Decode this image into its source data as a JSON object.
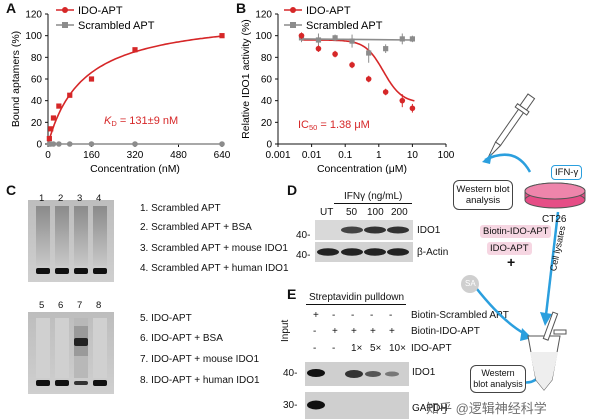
{
  "panels": {
    "A": {
      "label": "A",
      "kd_text": "K",
      "kd_sub": "D",
      "kd_value": " = 131±9 nM"
    },
    "B": {
      "label": "B",
      "ic50_text": "IC",
      "ic50_sub": "50",
      "ic50_value": " = 1.38 μM"
    },
    "C": {
      "label": "C",
      "top_lanes": [
        "1",
        "2",
        "3",
        "4"
      ],
      "bottom_lanes": [
        "5",
        "6",
        "7",
        "8"
      ],
      "legend_top": [
        "1. Scrambled APT",
        "2. Scrambled APT + BSA",
        "3. Scrambled APT + mouse IDO1",
        "4. Scrambled APT + human IDO1"
      ],
      "legend_bottom": [
        "5. IDO-APT",
        "6. IDO-APT + BSA",
        "7. IDO-APT + mouse IDO1",
        "8. IDO-APT + human IDO1"
      ]
    },
    "D": {
      "label": "D",
      "header": "IFNγ (ng/mL)",
      "lanes": [
        "UT",
        "50",
        "100",
        "200"
      ],
      "rows": [
        "IDO1",
        "β-Actin"
      ],
      "mw": [
        "40-",
        "40-"
      ]
    },
    "E": {
      "label": "E",
      "header": "Streptavidin pulldown",
      "input_label": "Input",
      "rows": [
        {
          "name": "Biotin-Scrambled APT",
          "marks": [
            "+",
            "-",
            "-",
            "-",
            "-"
          ]
        },
        {
          "name": "Biotin-IDO-APT",
          "marks": [
            "-",
            "+",
            "+",
            "+",
            "+"
          ]
        },
        {
          "name": "IDO-APT",
          "marks": [
            "-",
            "-",
            "1×",
            "5×",
            "10×"
          ]
        }
      ],
      "blots": [
        "IDO1",
        "GAPDH"
      ],
      "mw": [
        "40-",
        "30-"
      ]
    },
    "schematic": {
      "ifn": "IFN-γ",
      "western_top": "Western blot analysis",
      "cell_line": "CT26",
      "biotin_ido": "Biotin-IDO-APT",
      "ido_apt": "IDO-APT",
      "plus": "+",
      "sa": "SA",
      "cell_lysates": "Cell lysates",
      "western_bottom": "Western blot analysis",
      "watermark": "知乎 @逻辑神经科学"
    }
  },
  "chart_data": [
    {
      "type": "scatter",
      "panel": "A",
      "xlabel": "Concentration (nM)",
      "ylabel": "Bound aptamers (%)",
      "xlim": [
        0,
        640
      ],
      "ylim": [
        0,
        120
      ],
      "xticks": [
        0,
        160,
        320,
        480,
        640
      ],
      "yticks": [
        0,
        20,
        40,
        60,
        80,
        100,
        120
      ],
      "legend": "top-left",
      "series": [
        {
          "name": "IDO-APT",
          "color": "#d62728",
          "x": [
            5,
            10,
            20,
            40,
            80,
            160,
            320,
            640
          ],
          "y": [
            5,
            14,
            24,
            35,
            45,
            60,
            87,
            100
          ]
        },
        {
          "name": "Scrambled APT",
          "color": "#8c8c8c",
          "x": [
            5,
            10,
            20,
            40,
            80,
            160,
            320,
            640
          ],
          "y": [
            0,
            0,
            0,
            0,
            0,
            0,
            0,
            0
          ]
        }
      ]
    },
    {
      "type": "scatter",
      "panel": "B",
      "xlabel": "Concentration (μM)",
      "ylabel": "Relative IDO1 activity (%)",
      "xscale": "log",
      "xlim": [
        0.001,
        100
      ],
      "ylim": [
        0,
        120
      ],
      "xticks": [
        0.001,
        0.01,
        0.1,
        1,
        10,
        100
      ],
      "xticklabels": [
        "0.001",
        "0.01",
        "0.1",
        "1",
        "10",
        "100"
      ],
      "yticks": [
        0,
        20,
        40,
        60,
        80,
        100,
        120
      ],
      "legend": "top-left",
      "series": [
        {
          "name": "IDO-APT",
          "color": "#d62728",
          "x": [
            0.005,
            0.016,
            0.05,
            0.16,
            0.5,
            1.6,
            5,
            10
          ],
          "y": [
            100,
            88,
            83,
            73,
            60,
            48,
            40,
            33
          ],
          "err": [
            3,
            3,
            3,
            3,
            3,
            3,
            6,
            4
          ]
        },
        {
          "name": "Scrambled APT",
          "color": "#8c8c8c",
          "x": [
            0.005,
            0.016,
            0.05,
            0.16,
            0.5,
            1.6,
            5,
            10
          ],
          "y": [
            98,
            96,
            98,
            95,
            84,
            88,
            97,
            97
          ],
          "err": [
            4,
            6,
            3,
            6,
            9,
            4,
            5,
            3
          ]
        }
      ]
    }
  ]
}
